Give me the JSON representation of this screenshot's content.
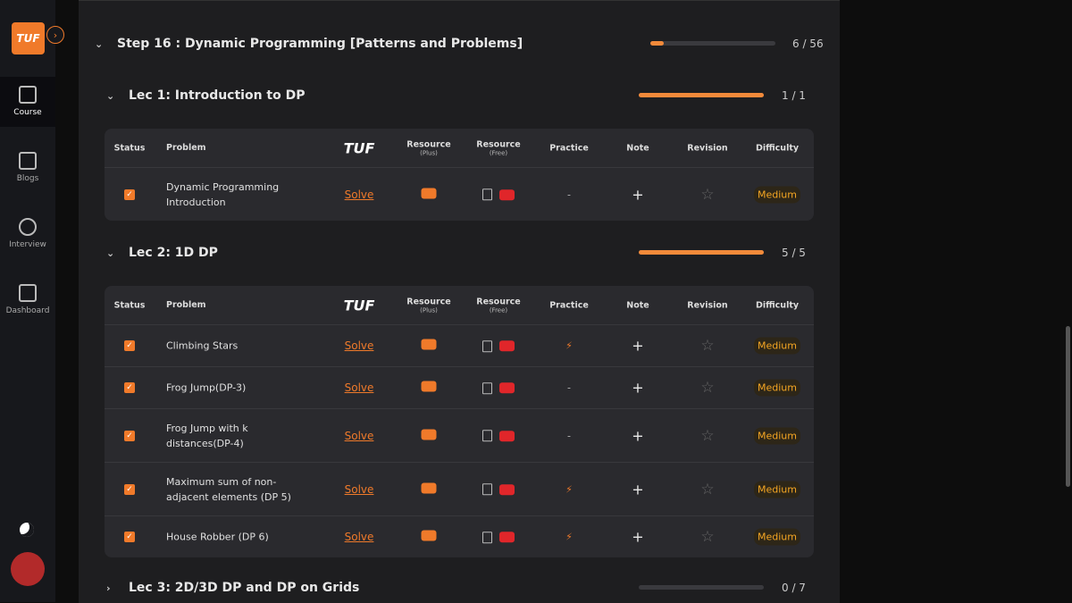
{
  "sidebar": {
    "logo": "TUF",
    "items": [
      "Course",
      "Blogs",
      "Interview",
      "Dashboard"
    ]
  },
  "step": {
    "title": "Step 16 : Dynamic Programming [Patterns and Problems]",
    "progress": {
      "done": 6,
      "total": 56,
      "label": "6 / 56"
    }
  },
  "table_headers": {
    "status": "Status",
    "problem": "Problem",
    "brand": "TUF",
    "plus": {
      "title": "Resource",
      "sub": "(Plus)"
    },
    "free": {
      "title": "Resource",
      "sub": "(Free)"
    },
    "practice": "Practice",
    "note": "Note",
    "revision": "Revision",
    "difficulty": "Difficulty"
  },
  "lectures": [
    {
      "title": "Lec 1: Introduction to DP",
      "expanded": true,
      "progress": {
        "done": 1,
        "total": 1,
        "label": "1 / 1"
      },
      "rows": [
        {
          "problem": "Dynamic Programming Introduction",
          "action": "Solve",
          "practice": "-",
          "note": "+",
          "difficulty": "Medium"
        }
      ]
    },
    {
      "title": "Lec 2: 1D DP",
      "expanded": true,
      "progress": {
        "done": 5,
        "total": 5,
        "label": "5 / 5"
      },
      "rows": [
        {
          "problem": "Climbing Stars",
          "action": "Solve",
          "note": "+",
          "difficulty": "Medium"
        },
        {
          "problem": "Frog Jump(DP-3)",
          "action": "Solve",
          "practice": "-",
          "note": "+",
          "difficulty": "Medium"
        },
        {
          "problem": "Frog Jump with k distances(DP-4)",
          "action": "Solve",
          "practice": "-",
          "note": "+",
          "difficulty": "Medium"
        },
        {
          "problem": "Maximum sum of non-adjacent elements (DP 5)",
          "action": "Solve",
          "note": "+",
          "difficulty": "Medium"
        },
        {
          "problem": "House Robber (DP 6)",
          "action": "Solve",
          "note": "+",
          "difficulty": "Medium"
        }
      ]
    },
    {
      "title": "Lec 3: 2D/3D DP and DP on Grids",
      "expanded": false,
      "progress": {
        "done": 0,
        "total": 7,
        "label": "0 / 7"
      }
    }
  ]
}
